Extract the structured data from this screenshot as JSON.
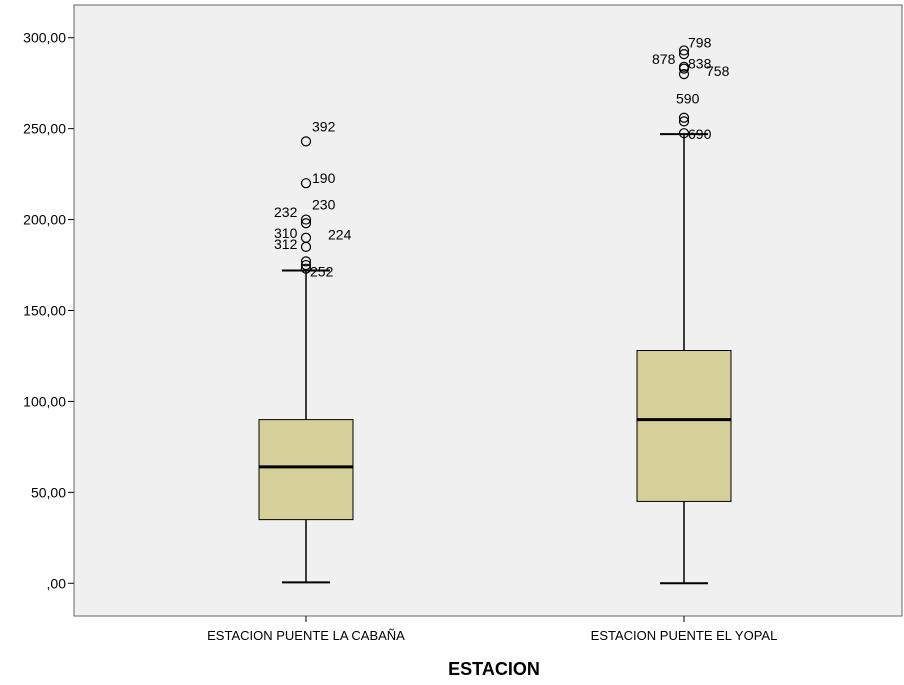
{
  "chart_data": {
    "type": "boxplot",
    "title": "",
    "xlabel": "ESTACION",
    "ylabel": "",
    "ylim": [
      -18,
      318
    ],
    "yticks": [
      {
        "value": 0,
        "label": ",00"
      },
      {
        "value": 50,
        "label": "50,00"
      },
      {
        "value": 100,
        "label": "100,00"
      },
      {
        "value": 150,
        "label": "150,00"
      },
      {
        "value": 200,
        "label": "200,00"
      },
      {
        "value": 250,
        "label": "250,00"
      },
      {
        "value": 300,
        "label": "300,00"
      }
    ],
    "grid": false,
    "legend": "none",
    "colors": {
      "plot_background": "#f0f0f0",
      "box_fill": "#d5cf99",
      "line": "#000000",
      "outlier": "#000000"
    },
    "categories": [
      "ESTACION PUENTE LA CABAÑA",
      "ESTACION PUENTE EL YOPAL"
    ],
    "boxes": [
      {
        "category": "ESTACION PUENTE LA CABAÑA",
        "whisker_low": 0.5,
        "q1": 35,
        "median": 64,
        "q3": 90,
        "whisker_high": 172,
        "outliers": [
          {
            "value": 243,
            "label": "392"
          },
          {
            "value": 220,
            "label": "190"
          },
          {
            "value": 200,
            "label": "230"
          },
          {
            "value": 198,
            "label": "232"
          },
          {
            "value": 190,
            "label": "310"
          },
          {
            "value": 185,
            "label": ""
          },
          {
            "value": 177,
            "label": "224"
          },
          {
            "value": 175,
            "label": "312"
          },
          {
            "value": 173,
            "label": "252"
          }
        ]
      },
      {
        "category": "ESTACION PUENTE EL YOPAL",
        "whisker_low": 0,
        "q1": 45,
        "median": 90,
        "q3": 128,
        "whisker_high": 247,
        "outliers": [
          {
            "value": 293,
            "label": "798"
          },
          {
            "value": 291,
            "label": ""
          },
          {
            "value": 284,
            "label": "878"
          },
          {
            "value": 283,
            "label": "838"
          },
          {
            "value": 280,
            "label": "758"
          },
          {
            "value": 256,
            "label": "590"
          },
          {
            "value": 254,
            "label": ""
          },
          {
            "value": 247.5,
            "label": "690"
          }
        ]
      }
    ]
  }
}
